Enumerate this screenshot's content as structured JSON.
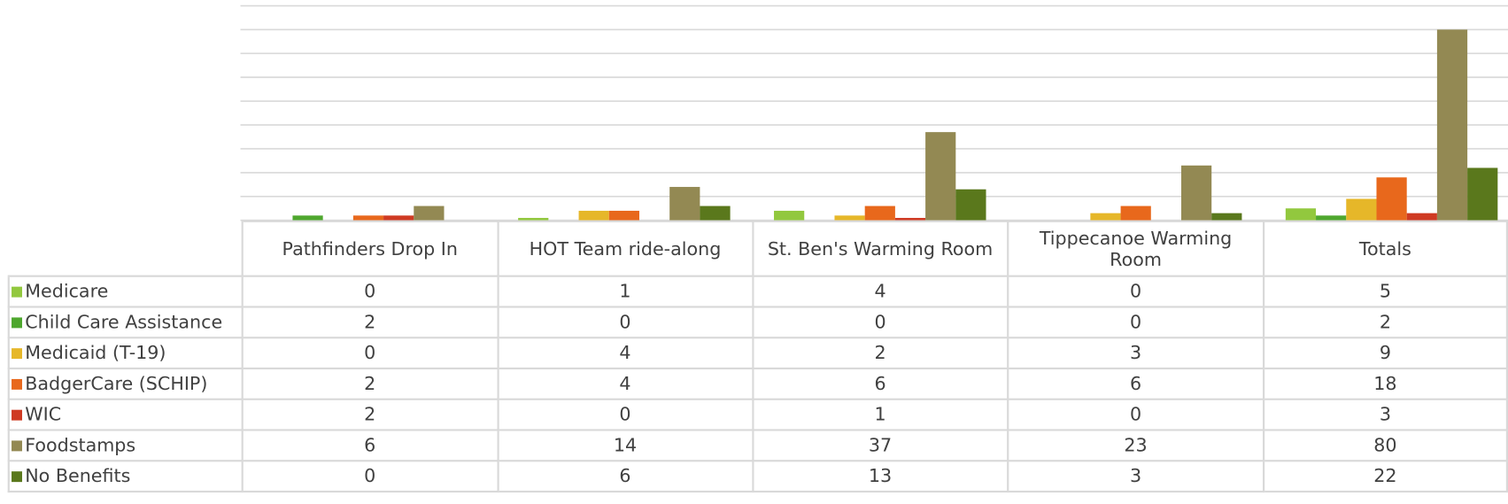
{
  "chart_data": {
    "type": "bar",
    "categories": [
      "Pathfinders Drop In",
      "HOT Team ride-along",
      "St. Ben's Warming Room",
      "Tippecanoe Warming Room",
      "Totals"
    ],
    "series": [
      {
        "name": "Medicare",
        "color": "#92c83e",
        "values": [
          0,
          1,
          4,
          0,
          5
        ]
      },
      {
        "name": "Child Care Assistance",
        "color": "#4ea72e",
        "values": [
          2,
          0,
          0,
          0,
          2
        ]
      },
      {
        "name": "Medicaid (T-19)",
        "color": "#e6b729",
        "values": [
          0,
          4,
          2,
          3,
          9
        ]
      },
      {
        "name": "BadgerCare (SCHIP)",
        "color": "#e8681c",
        "values": [
          2,
          4,
          6,
          6,
          18
        ]
      },
      {
        "name": "WIC",
        "color": "#cf3a22",
        "values": [
          2,
          0,
          1,
          0,
          3
        ]
      },
      {
        "name": "Foodstamps",
        "color": "#938953",
        "values": [
          6,
          14,
          37,
          23,
          80
        ]
      },
      {
        "name": "No Benefits",
        "color": "#5a781c",
        "values": [
          0,
          6,
          13,
          3,
          22
        ]
      }
    ],
    "ylim": [
      0,
      90
    ],
    "yticks": [
      0,
      10,
      20,
      30,
      40,
      50,
      60,
      70,
      80,
      90
    ],
    "grid": true
  }
}
